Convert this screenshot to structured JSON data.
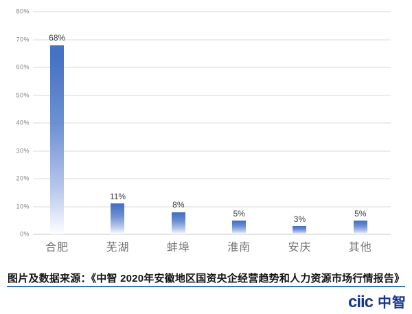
{
  "chart_data": {
    "type": "bar",
    "title": "",
    "xlabel": "",
    "ylabel": "",
    "categories": [
      "合肥",
      "芜湖",
      "蚌埠",
      "淮南",
      "安庆",
      "其他"
    ],
    "values": [
      68,
      11,
      8,
      5,
      3,
      5
    ],
    "value_labels": [
      "68%",
      "11%",
      "8%",
      "5%",
      "3%",
      "5%"
    ],
    "ylim": [
      0,
      80
    ],
    "y_ticks": [
      "0%",
      "10%",
      "20%",
      "30%",
      "40%",
      "50%",
      "60%",
      "70%",
      "80%"
    ],
    "grid": true,
    "legend": "none",
    "bar_color_top": "#4472c4",
    "bar_color_bottom": "#fdfeff",
    "gridline_color": "#d9d9d9"
  },
  "footer": {
    "source_text": "图片及数据来源：《中智 2020年安徽地区国资央企经营趋势和人力资源市场行情报告》",
    "divider_color": "#2e75b6",
    "logo": {
      "latin": "ciic",
      "cn": "中智",
      "color": "#17348f"
    }
  }
}
